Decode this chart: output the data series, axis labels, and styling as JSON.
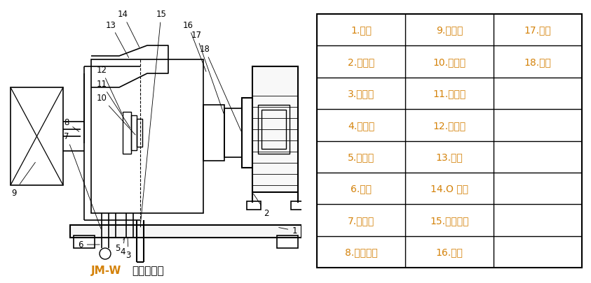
{
  "title_prefix": "JM-W",
  "title_suffix": "卧式胶体磨",
  "table_color": "#d4820a",
  "bg_color": "#ffffff",
  "table_data": [
    [
      "1.底座",
      "9.加料斗",
      "17.轴承"
    ],
    [
      "2.电动机",
      "10.旋叶刀",
      "18.端盖"
    ],
    [
      "3.排漏口",
      "11.动磨盘",
      ""
    ],
    [
      "4.出料口",
      "12.静磨盘",
      ""
    ],
    [
      "5.循环管",
      "13.刻度",
      ""
    ],
    [
      "6.手柄",
      "14.O 型圈",
      ""
    ],
    [
      "7.调节盘",
      "15.机械密封",
      ""
    ],
    [
      "8.冷却接头",
      "16.壳体",
      ""
    ]
  ]
}
